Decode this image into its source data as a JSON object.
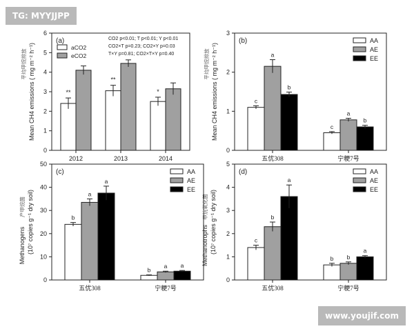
{
  "watermark_top": "TG: MYYJJPP",
  "watermark_bottom": "www.youjif.com",
  "chart_data": [
    {
      "type": "bar",
      "panel_label": "(a)",
      "ylabel_cn": "平均甲烷排放",
      "ylabel": "Mean CH4 emissions ( mg m⁻² h⁻¹)",
      "categories": [
        "2012",
        "2013",
        "2014"
      ],
      "ylim": [
        0,
        6
      ],
      "yticks": [
        0,
        1,
        2,
        3,
        4,
        5,
        6
      ],
      "legend_position": "top-left",
      "series": [
        {
          "name": "aCO2",
          "values": [
            2.4,
            3.05,
            2.5
          ],
          "errors": [
            0.28,
            0.28,
            0.22
          ],
          "color": "#ffffff"
        },
        {
          "name": "eCO2",
          "values": [
            4.1,
            4.45,
            3.15
          ],
          "errors": [
            0.22,
            0.18,
            0.3
          ],
          "color": "#a0a0a0"
        }
      ],
      "significance": [
        "**",
        "**",
        "*"
      ],
      "stats_text": [
        "CO2 p<0.01; T p<0.01; Y p<0.01",
        "CO2×T p=0.23; CO2×Y p=0.03",
        "T×Y p=0.81; CO2×T×Y p=0.40"
      ]
    },
    {
      "type": "bar",
      "panel_label": "(b)",
      "ylabel_cn": "平均甲烷排放",
      "ylabel": "Mean CH4 emissions ( mg m⁻² h⁻¹)",
      "categories": [
        "五优308",
        "宁粳7号"
      ],
      "ylim": [
        0,
        3
      ],
      "yticks": [
        0,
        1,
        2,
        3
      ],
      "legend_position": "top-right",
      "series": [
        {
          "name": "AA",
          "values": [
            1.1,
            0.45
          ],
          "errors": [
            0.04,
            0.03
          ],
          "letters": [
            "c",
            "c"
          ],
          "color": "#ffffff"
        },
        {
          "name": "AE",
          "values": [
            2.15,
            0.78
          ],
          "errors": [
            0.17,
            0.04
          ],
          "letters": [
            "a",
            "a"
          ],
          "color": "#a0a0a0"
        },
        {
          "name": "EE",
          "values": [
            1.43,
            0.6
          ],
          "errors": [
            0.06,
            0.04
          ],
          "letters": [
            "b",
            "b"
          ],
          "color": "#000000"
        }
      ]
    },
    {
      "type": "bar",
      "panel_label": "(c)",
      "ylabel_cn": "产甲烷菌",
      "ylabel": "Methanogens",
      "ylabel2": "(10⁷ copies g⁻¹ dry soil)",
      "categories": [
        "五优308",
        "宁粳7号"
      ],
      "ylim": [
        0,
        50
      ],
      "yticks": [
        0,
        10,
        20,
        30,
        40,
        50
      ],
      "legend_position": "top-right",
      "series": [
        {
          "name": "AA",
          "values": [
            24,
            2
          ],
          "errors": [
            0.8,
            0.2
          ],
          "letters": [
            "b",
            "b"
          ],
          "color": "#ffffff"
        },
        {
          "name": "AE",
          "values": [
            33.5,
            3.5
          ],
          "errors": [
            1.5,
            0.3
          ],
          "letters": [
            "a",
            "a"
          ],
          "color": "#a0a0a0"
        },
        {
          "name": "EE",
          "values": [
            37.5,
            3.8
          ],
          "errors": [
            3.0,
            0.3
          ],
          "letters": [
            "a",
            "a"
          ],
          "color": "#000000"
        }
      ]
    },
    {
      "type": "bar",
      "panel_label": "(d)",
      "ylabel_cn": "甲烷氧化菌",
      "ylabel": "Methanotrophs",
      "ylabel2": "(10⁷ copies g⁻¹ dry soil)",
      "categories": [
        "五优308",
        "宁粳7号"
      ],
      "ylim": [
        0,
        5
      ],
      "yticks": [
        0,
        1,
        2,
        3,
        4,
        5
      ],
      "legend_position": "top-right",
      "series": [
        {
          "name": "AA",
          "values": [
            1.4,
            0.65
          ],
          "errors": [
            0.1,
            0.07
          ],
          "letters": [
            "c",
            "b"
          ],
          "color": "#ffffff"
        },
        {
          "name": "AE",
          "values": [
            2.3,
            0.72
          ],
          "errors": [
            0.2,
            0.06
          ],
          "letters": [
            "b",
            "b"
          ],
          "color": "#a0a0a0"
        },
        {
          "name": "EE",
          "values": [
            3.6,
            1.0
          ],
          "errors": [
            0.5,
            0.05
          ],
          "letters": [
            "a",
            "a"
          ],
          "color": "#000000"
        }
      ]
    }
  ]
}
